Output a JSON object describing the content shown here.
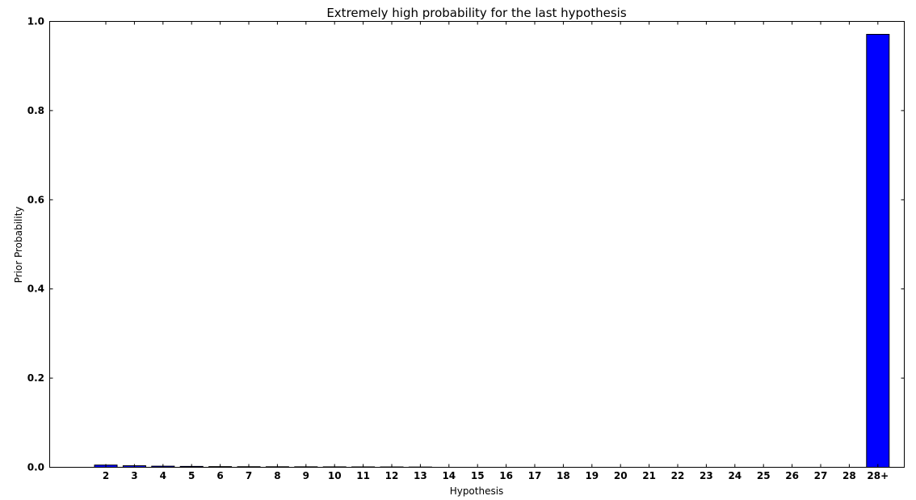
{
  "chart_data": {
    "type": "bar",
    "title": "Extremely high probability for the last hypothesis",
    "xlabel": "Hypothesis",
    "ylabel": "Prior Probability",
    "categories": [
      "2",
      "3",
      "4",
      "5",
      "6",
      "7",
      "8",
      "9",
      "10",
      "11",
      "12",
      "13",
      "14",
      "15",
      "16",
      "17",
      "18",
      "19",
      "20",
      "21",
      "22",
      "23",
      "24",
      "25",
      "26",
      "27",
      "28",
      "28+"
    ],
    "values": [
      0.005,
      0.0035,
      0.0025,
      0.002,
      0.0015,
      0.0013,
      0.0012,
      0.0011,
      0.001,
      0.0009,
      0.0008,
      0.0006,
      0,
      0,
      0,
      0,
      0,
      0,
      0,
      0,
      0,
      0,
      0,
      0,
      0,
      0,
      0,
      0.971
    ],
    "ylim": [
      0,
      1.0
    ],
    "yticks": [
      "0.0",
      "0.2",
      "0.4",
      "0.6",
      "0.8",
      "1.0"
    ],
    "ytick_values": [
      0,
      0.2,
      0.4,
      0.6,
      0.8,
      1.0
    ],
    "grid": false,
    "bar_color": "#0000ff",
    "edge_color": "#000000"
  }
}
